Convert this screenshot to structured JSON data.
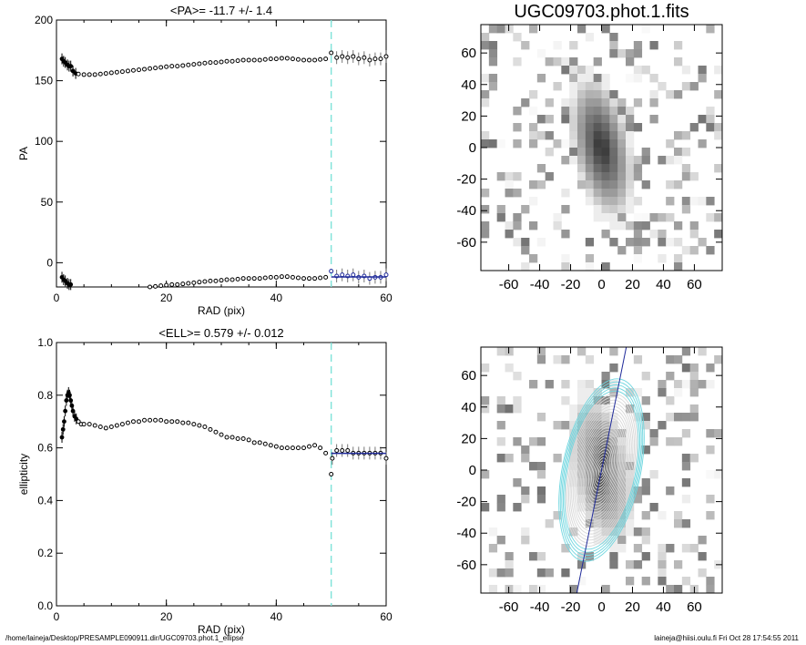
{
  "chart_data": [
    {
      "type": "scatter",
      "title": "<PA>= -11.7 +/-   1.4",
      "xlabel": "RAD (pix)",
      "ylabel": "PA",
      "xlim": [
        0,
        60
      ],
      "ylim": [
        -20,
        200
      ],
      "xticks": [
        0,
        20,
        40,
        60
      ],
      "yticks": [
        0,
        50,
        100,
        150,
        200
      ],
      "vline_x": 50,
      "fit_line": {
        "x": [
          50,
          60
        ],
        "y": [
          -11.7,
          -11.7
        ]
      },
      "series": [
        {
          "values": [
            [
              1.0,
              168
            ],
            [
              1.3,
              166
            ],
            [
              1.6,
              165
            ],
            [
              2.0,
              163
            ],
            [
              2.3,
              162
            ],
            [
              2.6,
              162
            ],
            [
              3.0,
              158
            ],
            [
              3.5,
              156
            ],
            [
              4,
              155.5
            ],
            [
              5,
              155
            ],
            [
              6,
              155
            ],
            [
              7,
              155
            ],
            [
              8,
              155.5
            ],
            [
              9,
              156
            ],
            [
              10,
              156.5
            ],
            [
              11,
              157
            ],
            [
              12,
              157.5
            ],
            [
              13,
              158
            ],
            [
              14,
              158.5
            ],
            [
              15,
              159
            ],
            [
              16,
              159.5
            ],
            [
              17,
              160
            ],
            [
              18,
              160.5
            ],
            [
              19,
              161
            ],
            [
              20,
              161.5
            ],
            [
              21,
              162
            ],
            [
              22,
              162
            ],
            [
              23,
              162.5
            ],
            [
              24,
              163
            ],
            [
              25,
              163.5
            ],
            [
              26,
              164
            ],
            [
              27,
              164.5
            ],
            [
              28,
              165
            ],
            [
              29,
              165
            ],
            [
              30,
              165.5
            ],
            [
              31,
              166
            ],
            [
              32,
              166
            ],
            [
              33,
              166.5
            ],
            [
              34,
              167
            ],
            [
              35,
              167
            ],
            [
              36,
              167
            ],
            [
              37,
              167
            ],
            [
              38,
              167.5
            ],
            [
              39,
              168
            ],
            [
              40,
              168
            ],
            [
              41,
              168.5
            ],
            [
              42,
              168.5
            ],
            [
              43,
              168
            ],
            [
              44,
              167.5
            ],
            [
              45,
              167
            ],
            [
              46,
              167
            ],
            [
              47,
              167
            ],
            [
              48,
              167.5
            ],
            [
              49,
              168
            ],
            [
              50,
              173
            ],
            [
              51,
              169
            ],
            [
              52,
              170
            ],
            [
              53,
              169
            ],
            [
              54,
              170
            ],
            [
              55,
              168
            ],
            [
              56,
              169
            ],
            [
              57,
              167
            ],
            [
              58,
              168
            ],
            [
              59,
              168
            ],
            [
              60,
              170
            ]
          ]
        },
        {
          "values": [
            [
              1.0,
              -12
            ],
            [
              1.3,
              -14
            ],
            [
              1.6,
              -15
            ],
            [
              2.0,
              -17
            ],
            [
              2.3,
              -18
            ],
            [
              2.6,
              -18
            ],
            [
              3.0,
              -21
            ],
            [
              17,
              -20
            ],
            [
              18,
              -19.5
            ],
            [
              19,
              -19
            ],
            [
              20,
              -18.5
            ],
            [
              21,
              -18
            ],
            [
              22,
              -18
            ],
            [
              23,
              -17.5
            ],
            [
              24,
              -17
            ],
            [
              25,
              -16.5
            ],
            [
              26,
              -16
            ],
            [
              27,
              -15.5
            ],
            [
              28,
              -15
            ],
            [
              29,
              -15
            ],
            [
              30,
              -14.5
            ],
            [
              31,
              -14
            ],
            [
              32,
              -14
            ],
            [
              33,
              -13.5
            ],
            [
              34,
              -13
            ],
            [
              35,
              -13
            ],
            [
              36,
              -13
            ],
            [
              37,
              -13
            ],
            [
              38,
              -12.5
            ],
            [
              39,
              -12
            ],
            [
              40,
              -12
            ],
            [
              41,
              -11.5
            ],
            [
              42,
              -11.5
            ],
            [
              43,
              -12
            ],
            [
              44,
              -12.5
            ],
            [
              45,
              -13
            ],
            [
              46,
              -13
            ],
            [
              47,
              -13
            ],
            [
              48,
              -12.5
            ],
            [
              49,
              -12
            ],
            [
              50,
              -7
            ],
            [
              51,
              -11
            ],
            [
              52,
              -10
            ],
            [
              53,
              -11
            ],
            [
              54,
              -10
            ],
            [
              55,
              -12
            ],
            [
              56,
              -11
            ],
            [
              57,
              -13
            ],
            [
              58,
              -12
            ],
            [
              59,
              -12
            ],
            [
              60,
              -10
            ]
          ]
        }
      ]
    },
    {
      "type": "scatter",
      "title": "<ELL>= 0.579 +/-  0.012",
      "xlabel": "RAD (pix)",
      "ylabel": "ellipticity",
      "xlim": [
        0,
        60
      ],
      "ylim": [
        0.0,
        1.0
      ],
      "xticks": [
        0,
        20,
        40,
        60
      ],
      "yticks": [
        0.0,
        0.2,
        0.4,
        0.6,
        0.8,
        1.0
      ],
      "vline_x": 50,
      "fit_line": {
        "x": [
          50,
          60
        ],
        "y": [
          0.579,
          0.579
        ]
      },
      "series": [
        {
          "values": [
            [
              1.0,
              0.64
            ],
            [
              1.2,
              0.67
            ],
            [
              1.4,
              0.7
            ],
            [
              1.6,
              0.74
            ],
            [
              1.8,
              0.78
            ],
            [
              2.0,
              0.8
            ],
            [
              2.2,
              0.81
            ],
            [
              2.4,
              0.8
            ],
            [
              2.6,
              0.78
            ],
            [
              2.8,
              0.76
            ],
            [
              3.0,
              0.74
            ],
            [
              3.3,
              0.72
            ],
            [
              3.6,
              0.71
            ],
            [
              4,
              0.7
            ],
            [
              4.5,
              0.69
            ],
            [
              5,
              0.69
            ],
            [
              6,
              0.69
            ],
            [
              7,
              0.685
            ],
            [
              8,
              0.68
            ],
            [
              9,
              0.675
            ],
            [
              10,
              0.68
            ],
            [
              11,
              0.685
            ],
            [
              12,
              0.69
            ],
            [
              13,
              0.695
            ],
            [
              14,
              0.7
            ],
            [
              15,
              0.7
            ],
            [
              16,
              0.705
            ],
            [
              17,
              0.705
            ],
            [
              18,
              0.705
            ],
            [
              19,
              0.705
            ],
            [
              20,
              0.7
            ],
            [
              21,
              0.7
            ],
            [
              22,
              0.7
            ],
            [
              23,
              0.695
            ],
            [
              24,
              0.695
            ],
            [
              25,
              0.69
            ],
            [
              26,
              0.685
            ],
            [
              27,
              0.68
            ],
            [
              28,
              0.67
            ],
            [
              29,
              0.66
            ],
            [
              30,
              0.65
            ],
            [
              31,
              0.64
            ],
            [
              32,
              0.64
            ],
            [
              33,
              0.635
            ],
            [
              34,
              0.635
            ],
            [
              35,
              0.63
            ],
            [
              36,
              0.62
            ],
            [
              37,
              0.62
            ],
            [
              38,
              0.615
            ],
            [
              39,
              0.61
            ],
            [
              40,
              0.605
            ],
            [
              41,
              0.6
            ],
            [
              42,
              0.6
            ],
            [
              43,
              0.6
            ],
            [
              44,
              0.6
            ],
            [
              45,
              0.6
            ],
            [
              46,
              0.605
            ],
            [
              47,
              0.61
            ],
            [
              48,
              0.6
            ],
            [
              49,
              0.58
            ],
            [
              50,
              0.5
            ],
            [
              50.2,
              0.56
            ],
            [
              51,
              0.59
            ],
            [
              52,
              0.59
            ],
            [
              53,
              0.59
            ],
            [
              54,
              0.58
            ],
            [
              55,
              0.58
            ],
            [
              56,
              0.58
            ],
            [
              57,
              0.58
            ],
            [
              58,
              0.58
            ],
            [
              59,
              0.58
            ],
            [
              60,
              0.56
            ]
          ]
        }
      ]
    },
    {
      "type": "heatmap",
      "title": "UGC09703.phot.1.fits",
      "xlim": [
        -78,
        78
      ],
      "ylim": [
        -78,
        78
      ],
      "xticks": [
        -60,
        -40,
        -20,
        0,
        20,
        40,
        60
      ],
      "yticks": [
        -60,
        -40,
        -20,
        0,
        20,
        40,
        60
      ],
      "galaxy": {
        "center": [
          0,
          0
        ],
        "major_axis": 45,
        "minor_axis": 18,
        "pa_deg": -11.7
      }
    },
    {
      "type": "heatmap",
      "title": "",
      "xlim": [
        -78,
        78
      ],
      "ylim": [
        -78,
        78
      ],
      "xticks": [
        -60,
        -40,
        -20,
        0,
        20,
        40,
        60
      ],
      "yticks": [
        -60,
        -40,
        -20,
        0,
        20,
        40,
        60
      ],
      "galaxy": {
        "center": [
          0,
          0
        ],
        "major_axis": 45,
        "minor_axis": 18,
        "pa_deg": -11.7
      },
      "major_axis_line": {
        "x": [
          -16,
          16
        ],
        "y": [
          -78,
          78
        ]
      },
      "ellipse_overlay": {
        "pa_deg": -11.7,
        "ell": 0.579,
        "max_rad": 60
      }
    }
  ],
  "footer": {
    "path": "/home/laineja/Desktop/PRESAMPLE090911.dir/UGC09703.phot.1_ellipse",
    "user": "laineja@hiisi.oulu.fi  Fri Oct 28 17:54:55 2011"
  },
  "colors": {
    "vline": "#7fe3d9",
    "fit": "#1f2a9a",
    "ellipse_outer": "#6fd6df",
    "ellipse_inner": "#d8d8d8"
  }
}
